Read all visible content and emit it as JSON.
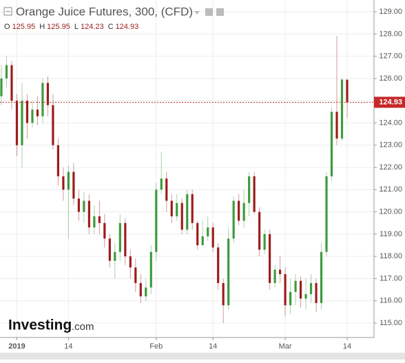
{
  "chart_data": {
    "type": "candlestick",
    "title": "Orange Juice Futures, 300, (CFD)",
    "ohlc_labels": [
      {
        "label": "O",
        "value": "125.95"
      },
      {
        "label": "H",
        "value": "125.95"
      },
      {
        "label": "L",
        "value": "124.23"
      },
      {
        "label": "C",
        "value": "124.93"
      }
    ],
    "logo": "Investing",
    "logo_suffix": ".com",
    "categories": [
      null,
      null,
      null,
      "2019",
      null,
      null,
      null,
      null,
      null,
      null,
      null,
      null,
      null,
      "14",
      null,
      null,
      null,
      null,
      null,
      null,
      null,
      null,
      null,
      null,
      null,
      null,
      null,
      null,
      null,
      null,
      "Feb",
      null,
      null,
      null,
      null,
      null,
      null,
      null,
      null,
      null,
      null,
      "14",
      null,
      null,
      null,
      null,
      null,
      null,
      null,
      null,
      null,
      null,
      null,
      null,
      null,
      "Mar",
      null,
      null,
      null,
      null,
      null,
      null,
      null,
      null,
      null,
      null,
      null,
      "14"
    ],
    "open": [
      125.2,
      126.0,
      126.6,
      125.0,
      123.0,
      125.0,
      124.0,
      124.6,
      124.3,
      125.8,
      124.8,
      123.0,
      121.6,
      121.0,
      121.8,
      120.6,
      120.0,
      120.5,
      119.3,
      119.8,
      119.5,
      118.8,
      117.8,
      118.2,
      119.5,
      118.0,
      117.5,
      116.8,
      116.2,
      116.6,
      118.2,
      121.0,
      121.5,
      120.5,
      119.8,
      120.4,
      119.2,
      120.8,
      119.5,
      118.5,
      118.9,
      119.3,
      118.4,
      116.8,
      115.8,
      118.8,
      120.5,
      119.6,
      120.4,
      121.6,
      120.0,
      118.3,
      119.0,
      116.8,
      117.4,
      117.2,
      115.8,
      116.4,
      116.9,
      116.1,
      116.3,
      116.8,
      115.9,
      118.2,
      121.6,
      124.5,
      123.3,
      125.95
    ],
    "high": [
      126.6,
      127.0,
      126.8,
      125.3,
      125.8,
      125.3,
      125.0,
      125.2,
      126.0,
      126.1,
      125.3,
      123.3,
      122.0,
      122.1,
      122.2,
      121.0,
      120.9,
      120.8,
      120.3,
      120.5,
      119.9,
      119.0,
      118.6,
      119.9,
      119.7,
      118.3,
      117.9,
      117.2,
      117.0,
      118.5,
      121.3,
      122.7,
      121.8,
      120.8,
      120.8,
      120.6,
      121.0,
      121.0,
      119.6,
      119.6,
      119.8,
      119.5,
      118.6,
      117.0,
      119.3,
      120.7,
      120.8,
      121.0,
      121.8,
      121.8,
      120.2,
      119.2,
      119.2,
      117.6,
      118.0,
      117.5,
      117.0,
      117.2,
      117.1,
      117.0,
      117.2,
      117.0,
      118.6,
      121.8,
      124.7,
      127.9,
      126.0,
      125.95
    ],
    "low": [
      124.8,
      125.6,
      124.6,
      122.5,
      122.0,
      123.3,
      123.8,
      123.9,
      124.0,
      124.3,
      122.8,
      121.2,
      120.5,
      118.8,
      120.3,
      119.6,
      119.5,
      119.0,
      119.0,
      119.0,
      118.4,
      117.5,
      117.0,
      117.8,
      117.6,
      117.0,
      116.4,
      115.9,
      116.0,
      116.3,
      117.8,
      120.8,
      120.0,
      119.5,
      119.6,
      119.0,
      119.0,
      119.2,
      118.3,
      118.6,
      118.7,
      118.2,
      116.5,
      115.0,
      115.6,
      118.6,
      119.4,
      119.3,
      119.8,
      119.9,
      118.0,
      118.1,
      116.5,
      116.6,
      116.8,
      115.3,
      115.4,
      115.8,
      115.7,
      115.6,
      115.9,
      115.5,
      115.6,
      118.0,
      121.4,
      123.0,
      123.2,
      124.23
    ],
    "close": [
      126.0,
      126.6,
      125.0,
      123.0,
      125.0,
      124.0,
      124.6,
      124.3,
      125.8,
      124.8,
      123.0,
      121.6,
      121.0,
      121.8,
      120.6,
      120.0,
      120.5,
      119.3,
      119.8,
      119.5,
      118.8,
      117.8,
      118.2,
      119.5,
      118.0,
      117.5,
      116.8,
      116.2,
      116.6,
      118.2,
      121.0,
      121.5,
      120.5,
      119.8,
      120.4,
      119.2,
      120.8,
      119.5,
      118.5,
      118.9,
      119.3,
      118.4,
      116.8,
      115.8,
      118.8,
      120.5,
      119.6,
      120.4,
      121.6,
      120.0,
      118.3,
      119.0,
      116.8,
      117.4,
      117.2,
      115.8,
      116.4,
      116.9,
      116.1,
      116.3,
      116.8,
      115.9,
      118.2,
      121.6,
      124.5,
      123.3,
      125.95,
      124.93
    ],
    "up_color": "#3d9b3d",
    "down_color": "#9c1c1c",
    "ylim": [
      114.35,
      129.53
    ],
    "yticks": [
      {
        "value": 115,
        "label": "115.00"
      },
      {
        "value": 116,
        "label": "116.00"
      },
      {
        "value": 117,
        "label": "117.00"
      },
      {
        "value": 118,
        "label": "118.00"
      },
      {
        "value": 119,
        "label": "119.00"
      },
      {
        "value": 120,
        "label": "120.00"
      },
      {
        "value": 121,
        "label": "121.00"
      },
      {
        "value": 122,
        "label": "122.00"
      },
      {
        "value": 123,
        "label": "123.00"
      },
      {
        "value": 124,
        "label": "124.00"
      },
      {
        "value": 125,
        "label": "125.00"
      },
      {
        "value": 126,
        "label": "126.00"
      },
      {
        "value": 127,
        "label": "127.00"
      },
      {
        "value": 128,
        "label": "128.00"
      },
      {
        "value": 129,
        "label": "129.00"
      }
    ],
    "grid": true,
    "price_line_color": "#c62828"
  }
}
